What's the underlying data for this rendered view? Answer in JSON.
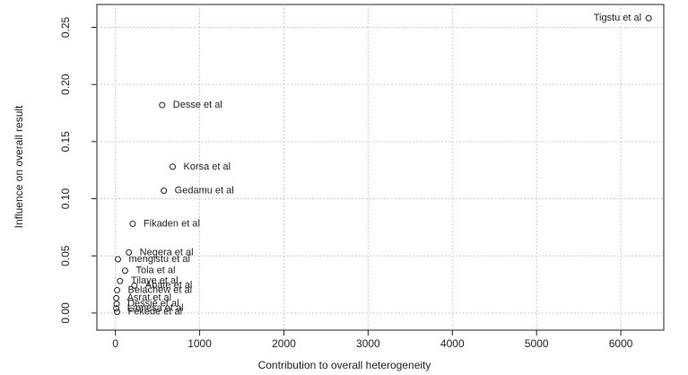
{
  "chart_data": {
    "type": "scatter",
    "x_label": "Contribution to overall heterogeneity",
    "y_label": "Influence on overall result",
    "labels": [
      "Tigstu et al",
      "Desse et al",
      "Korsa et al",
      "Gedamu et al",
      "Fikaden et al",
      "Negera et al",
      "mengistu et al",
      "Tola et al",
      "Tilaye et al",
      "Abate et al",
      "Belachew et al",
      "Asrat et al",
      "Dessie et al",
      "Lamesa et al",
      "Fekede et al"
    ],
    "x": [
      6330,
      555,
      680,
      575,
      205,
      160,
      30,
      115,
      55,
      225,
      20,
      10,
      15,
      10,
      20
    ],
    "values": [
      0.258,
      0.182,
      0.128,
      0.107,
      0.078,
      0.053,
      0.047,
      0.037,
      0.028,
      0.024,
      0.02,
      0.013,
      0.008,
      0.004,
      0.001
    ],
    "color": "#222222",
    "xlim": [
      -220,
      6510
    ],
    "ylim": [
      -0.015,
      0.27
    ],
    "xticks": [
      0,
      1000,
      2000,
      3000,
      4000,
      5000,
      6000
    ],
    "yticks": [
      {
        "value": 0,
        "label": "0.00"
      },
      {
        "value": 0.05,
        "label": "0.05"
      },
      {
        "value": 0.1,
        "label": "0.10"
      },
      {
        "value": 0.15,
        "label": "0.15"
      },
      {
        "value": 0.2,
        "label": "0.20"
      },
      {
        "value": 0.25,
        "label": "0.25"
      }
    ],
    "grid": true
  }
}
